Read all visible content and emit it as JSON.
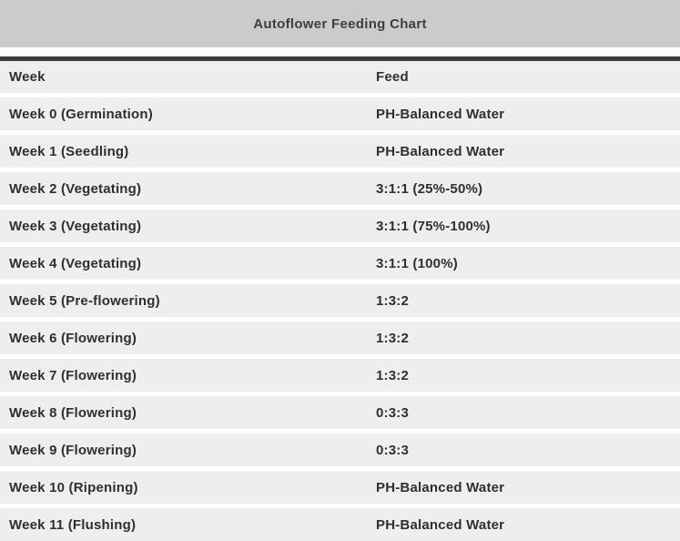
{
  "title": "Autoflower Feeding Chart",
  "colors": {
    "title_bar_bg": "#cbcbcb",
    "divider": "#3b3b3b",
    "row_bg": "#eeeeee",
    "text": "#2f2f2f"
  },
  "table": {
    "columns": [
      "Week",
      "Feed"
    ],
    "rows": [
      {
        "week": "Week 0 (Germination)",
        "feed": "PH-Balanced Water"
      },
      {
        "week": "Week 1 (Seedling)",
        "feed": "PH-Balanced Water"
      },
      {
        "week": "Week 2 (Vegetating)",
        "feed": "3:1:1 (25%-50%)"
      },
      {
        "week": "Week 3 (Vegetating)",
        "feed": "3:1:1 (75%-100%)"
      },
      {
        "week": "Week 4 (Vegetating)",
        "feed": "3:1:1 (100%)"
      },
      {
        "week": "Week 5 (Pre-flowering)",
        "feed": "1:3:2"
      },
      {
        "week": "Week 6 (Flowering)",
        "feed": "1:3:2"
      },
      {
        "week": "Week 7 (Flowering)",
        "feed": "1:3:2"
      },
      {
        "week": "Week 8 (Flowering)",
        "feed": "0:3:3"
      },
      {
        "week": "Week 9 (Flowering)",
        "feed": "0:3:3"
      },
      {
        "week": "Week 10 (Ripening)",
        "feed": "PH-Balanced Water"
      },
      {
        "week": "Week 11 (Flushing)",
        "feed": "PH-Balanced Water"
      }
    ]
  },
  "chart_data": {
    "type": "table",
    "title": "Autoflower Feeding Chart",
    "columns": [
      "Week",
      "Feed"
    ],
    "rows": [
      [
        "Week 0 (Germination)",
        "PH-Balanced Water"
      ],
      [
        "Week 1 (Seedling)",
        "PH-Balanced Water"
      ],
      [
        "Week 2 (Vegetating)",
        "3:1:1 (25%-50%)"
      ],
      [
        "Week 3 (Vegetating)",
        "3:1:1 (75%-100%)"
      ],
      [
        "Week 4 (Vegetating)",
        "3:1:1 (100%)"
      ],
      [
        "Week 5 (Pre-flowering)",
        "1:3:2"
      ],
      [
        "Week 6 (Flowering)",
        "1:3:2"
      ],
      [
        "Week 7 (Flowering)",
        "1:3:2"
      ],
      [
        "Week 8 (Flowering)",
        "0:3:3"
      ],
      [
        "Week 9 (Flowering)",
        "0:3:3"
      ],
      [
        "Week 10 (Ripening)",
        "PH-Balanced Water"
      ],
      [
        "Week 11 (Flushing)",
        "PH-Balanced Water"
      ]
    ]
  }
}
